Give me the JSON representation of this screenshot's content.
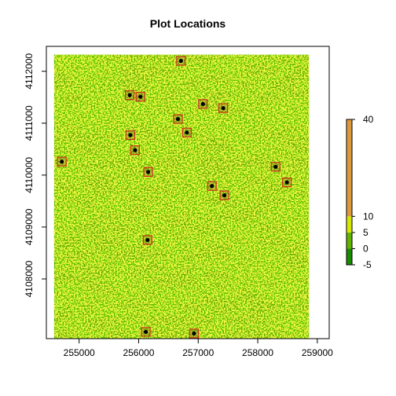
{
  "chart_data": {
    "type": "map",
    "title": "Plot Locations",
    "xlabel": "",
    "ylabel": "",
    "xlim": [
      254450,
      259200
    ],
    "ylim": [
      4106850,
      4112480
    ],
    "x_ticks": [
      255000,
      256000,
      257000,
      258000,
      259000
    ],
    "y_ticks": [
      4108000,
      4109000,
      4110000,
      4111000,
      4112000
    ],
    "raster_extent": {
      "x": [
        254580,
        258860
      ],
      "y": [
        4106850,
        4112320
      ]
    },
    "legend": {
      "breaks": [
        -5,
        0,
        5,
        10,
        40
      ],
      "colors": [
        "#1a8a00",
        "#62b400",
        "#d7e800",
        "#dd9a3c"
      ],
      "tick_labels": [
        "-5",
        "0",
        "5",
        "10",
        "40"
      ]
    },
    "plot_locations": [
      {
        "x": 256710,
        "y": 4112200
      },
      {
        "x": 255850,
        "y": 4111540
      },
      {
        "x": 256030,
        "y": 4111510
      },
      {
        "x": 257080,
        "y": 4111370
      },
      {
        "x": 257420,
        "y": 4111290
      },
      {
        "x": 256660,
        "y": 4111080
      },
      {
        "x": 256810,
        "y": 4110820
      },
      {
        "x": 255860,
        "y": 4110770
      },
      {
        "x": 255940,
        "y": 4110480
      },
      {
        "x": 254710,
        "y": 4110260
      },
      {
        "x": 256160,
        "y": 4110060
      },
      {
        "x": 258300,
        "y": 4110160
      },
      {
        "x": 258490,
        "y": 4109860
      },
      {
        "x": 257230,
        "y": 4109790
      },
      {
        "x": 257440,
        "y": 4109610
      },
      {
        "x": 256150,
        "y": 4108750
      },
      {
        "x": 256120,
        "y": 4106980
      },
      {
        "x": 256930,
        "y": 4106950
      }
    ]
  }
}
